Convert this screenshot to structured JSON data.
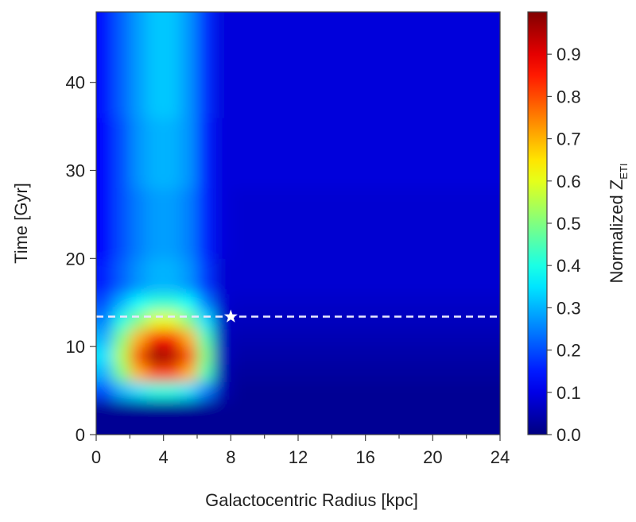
{
  "chart_data": {
    "type": "heatmap",
    "xlabel": "Galactocentric Radius [kpc]",
    "ylabel": "Time [Gyr]",
    "colorbar_label": {
      "text": "Normalized Z",
      "subscript": "ETI"
    },
    "colormap": "jet",
    "x_edges": [
      0,
      1,
      2,
      3,
      4,
      5,
      6,
      7,
      8,
      12,
      16,
      20,
      24
    ],
    "y_edges": [
      0,
      4,
      6,
      8,
      10,
      12,
      14,
      16,
      20,
      28,
      36,
      48
    ],
    "z": [
      [
        0.02,
        0.02,
        0.02,
        0.02,
        0.02,
        0.02,
        0.02,
        0.02,
        0.02,
        0.02,
        0.02,
        0.02
      ],
      [
        0.2,
        0.3,
        0.35,
        0.4,
        0.4,
        0.35,
        0.25,
        0.05,
        0.02,
        0.02,
        0.02,
        0.02
      ],
      [
        0.3,
        0.5,
        0.7,
        0.8,
        0.8,
        0.7,
        0.45,
        0.05,
        0.03,
        0.03,
        0.03,
        0.03
      ],
      [
        0.35,
        0.55,
        0.8,
        0.98,
        0.95,
        0.8,
        0.5,
        0.06,
        0.04,
        0.04,
        0.04,
        0.04
      ],
      [
        0.3,
        0.5,
        0.7,
        0.85,
        0.85,
        0.7,
        0.45,
        0.06,
        0.05,
        0.05,
        0.05,
        0.05
      ],
      [
        0.25,
        0.4,
        0.5,
        0.6,
        0.6,
        0.5,
        0.35,
        0.07,
        0.06,
        0.06,
        0.06,
        0.06
      ],
      [
        0.2,
        0.3,
        0.38,
        0.42,
        0.42,
        0.38,
        0.25,
        0.08,
        0.07,
        0.07,
        0.07,
        0.07
      ],
      [
        0.15,
        0.22,
        0.27,
        0.3,
        0.3,
        0.27,
        0.18,
        0.08,
        0.08,
        0.08,
        0.08,
        0.08
      ],
      [
        0.13,
        0.2,
        0.25,
        0.28,
        0.28,
        0.25,
        0.16,
        0.09,
        0.08,
        0.08,
        0.08,
        0.08
      ],
      [
        0.13,
        0.2,
        0.27,
        0.3,
        0.3,
        0.27,
        0.16,
        0.09,
        0.09,
        0.09,
        0.09,
        0.09
      ],
      [
        0.14,
        0.22,
        0.28,
        0.32,
        0.32,
        0.27,
        0.17,
        0.09,
        0.09,
        0.09,
        0.09,
        0.09
      ]
    ],
    "xlim": [
      0,
      24
    ],
    "ylim": [
      0,
      48
    ],
    "clim": [
      0,
      1.0
    ],
    "xticks": [
      0,
      4,
      8,
      12,
      16,
      20,
      24
    ],
    "xminor_ticks": [
      2,
      6,
      10,
      14,
      18,
      22
    ],
    "yticks": [
      0,
      10,
      20,
      30,
      40
    ],
    "cticks": [
      {
        "value": 0,
        "label": "0.0"
      },
      0.1,
      0.2,
      0.3,
      0.4,
      0.5,
      0.6,
      0.7,
      0.8,
      0.9
    ],
    "hline": 13.4,
    "marker": {
      "x": 8,
      "y": 13.4
    }
  }
}
